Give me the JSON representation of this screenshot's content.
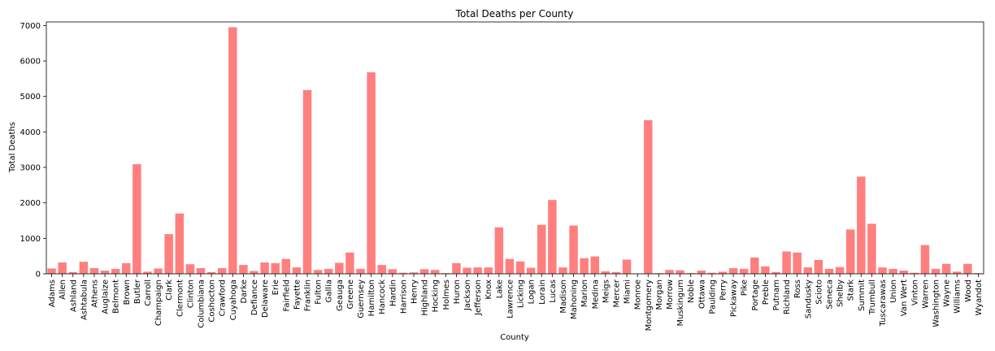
{
  "chart_data": {
    "type": "bar",
    "title": "Total Deaths per County",
    "xlabel": "County",
    "ylabel": "Total Deaths",
    "ylim": [
      0,
      7100
    ],
    "yticks": [
      0,
      1000,
      2000,
      3000,
      4000,
      5000,
      6000,
      7000
    ],
    "bar_color": "#ff7f7f",
    "grid": false,
    "categories": [
      "Adams",
      "Allen",
      "Ashland",
      "Ashtabula",
      "Athens",
      "Auglaize",
      "Belmont",
      "Brown",
      "Butler",
      "Carroll",
      "Champaign",
      "Clark",
      "Clermont",
      "Clinton",
      "Columbiana",
      "Coshocton",
      "Crawford",
      "Cuyahoga",
      "Darke",
      "Defiance",
      "Delaware",
      "Erie",
      "Fairfield",
      "Fayette",
      "Franklin",
      "Fulton",
      "Gallia",
      "Geauga",
      "Greene",
      "Guernsey",
      "Hamilton",
      "Hancock",
      "Hardin",
      "Harrison",
      "Henry",
      "Highland",
      "Hocking",
      "Holmes",
      "Huron",
      "Jackson",
      "Jefferson",
      "Knox",
      "Lake",
      "Lawrence",
      "Licking",
      "Logan",
      "Lorain",
      "Lucas",
      "Madison",
      "Mahoning",
      "Marion",
      "Medina",
      "Meigs",
      "Mercer",
      "Miami",
      "Monroe",
      "Montgomery",
      "Morgan",
      "Morrow",
      "Muskingum",
      "Noble",
      "Ottawa",
      "Paulding",
      "Perry",
      "Pickaway",
      "Pike",
      "Portage",
      "Preble",
      "Putnam",
      "Richland",
      "Ross",
      "Sandusky",
      "Scioto",
      "Seneca",
      "Shelby",
      "Stark",
      "Summit",
      "Trumbull",
      "Tuscarawas",
      "Union",
      "Van Wert",
      "Vinton",
      "Warren",
      "Washington",
      "Wayne",
      "Williams",
      "Wood",
      "Wyandot"
    ],
    "values": [
      150,
      320,
      50,
      340,
      160,
      90,
      140,
      300,
      3090,
      60,
      150,
      1120,
      1700,
      270,
      160,
      50,
      160,
      6950,
      250,
      80,
      320,
      300,
      420,
      180,
      5180,
      110,
      140,
      310,
      600,
      140,
      5680,
      250,
      130,
      30,
      40,
      130,
      110,
      20,
      300,
      170,
      180,
      180,
      1310,
      420,
      350,
      170,
      1380,
      2080,
      180,
      1360,
      440,
      490,
      70,
      50,
      400,
      10,
      4330,
      20,
      110,
      100,
      20,
      90,
      30,
      60,
      160,
      140,
      460,
      210,
      50,
      630,
      600,
      180,
      390,
      140,
      190,
      1250,
      2740,
      1410,
      180,
      140,
      90,
      30,
      810,
      140,
      280,
      60,
      280,
      20
    ]
  }
}
